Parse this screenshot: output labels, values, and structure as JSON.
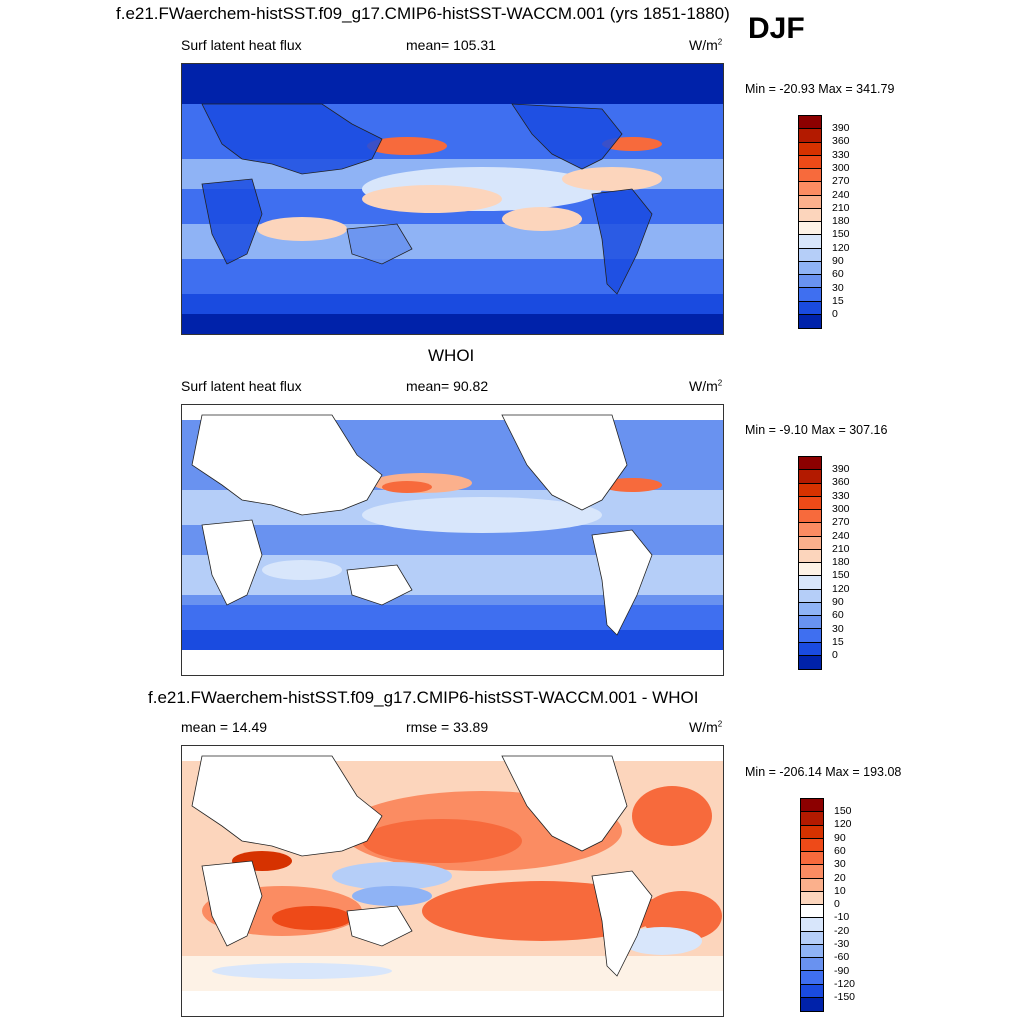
{
  "season": "DJF",
  "panels": [
    {
      "title": "f.e21.FWaerchem-histSST.f09_g17.CMIP6-histSST-WACCM.001 (yrs 1851-1880)",
      "left_label": "Surf latent heat flux",
      "center_label": "mean= 105.31",
      "units": "W/m",
      "units_sup": "2",
      "minmax": "Min = -20.93 Max = 341.79",
      "map_icon": "global-map-model",
      "colorbar": {
        "ticks": [
          "390",
          "360",
          "330",
          "300",
          "270",
          "240",
          "210",
          "180",
          "150",
          "120",
          "90",
          "60",
          "30",
          "15",
          "0"
        ],
        "colors": [
          "#8c0000",
          "#b31a00",
          "#d63200",
          "#ee4a18",
          "#f76a3c",
          "#fb8c62",
          "#fbb08c",
          "#fcd5bc",
          "#fdf2e6",
          "#d8e6fb",
          "#b5cef8",
          "#8fb3f5",
          "#6992f0",
          "#3f6ff0",
          "#1a4be0",
          "#0022aa"
        ]
      }
    },
    {
      "title": "WHOI",
      "left_label": "Surf latent heat flux",
      "center_label": "mean=  90.82",
      "units": "W/m",
      "units_sup": "2",
      "minmax": "Min =  -9.10 Max = 307.16",
      "map_icon": "global-map-observed",
      "colorbar": {
        "ticks": [
          "390",
          "360",
          "330",
          "300",
          "270",
          "240",
          "210",
          "180",
          "150",
          "120",
          "90",
          "60",
          "30",
          "15",
          "0"
        ],
        "colors": [
          "#8c0000",
          "#b31a00",
          "#d63200",
          "#ee4a18",
          "#f76a3c",
          "#fb8c62",
          "#fbb08c",
          "#fcd5bc",
          "#fdf2e6",
          "#d8e6fb",
          "#b5cef8",
          "#8fb3f5",
          "#6992f0",
          "#3f6ff0",
          "#1a4be0",
          "#0022aa"
        ]
      }
    },
    {
      "title": "f.e21.FWaerchem-histSST.f09_g17.CMIP6-histSST-WACCM.001 - WHOI",
      "left_label": "mean =  14.49",
      "center_label": "rmse =  33.89",
      "units": "W/m",
      "units_sup": "2",
      "minmax": "Min = -206.14 Max = 193.08",
      "map_icon": "global-map-difference",
      "colorbar": {
        "ticks": [
          "150",
          "120",
          "90",
          "60",
          "30",
          "20",
          "10",
          "0",
          "-10",
          "-20",
          "-30",
          "-60",
          "-90",
          "-120",
          "-150"
        ],
        "colors": [
          "#8c0000",
          "#b31a00",
          "#d63200",
          "#ee4a18",
          "#f76a3c",
          "#fb8c62",
          "#fbb08c",
          "#fcd5bc",
          "#ffffff",
          "#d8e6fb",
          "#b5cef8",
          "#8fb3f5",
          "#6992f0",
          "#3f6ff0",
          "#1a4be0",
          "#0022aa"
        ]
      }
    }
  ]
}
